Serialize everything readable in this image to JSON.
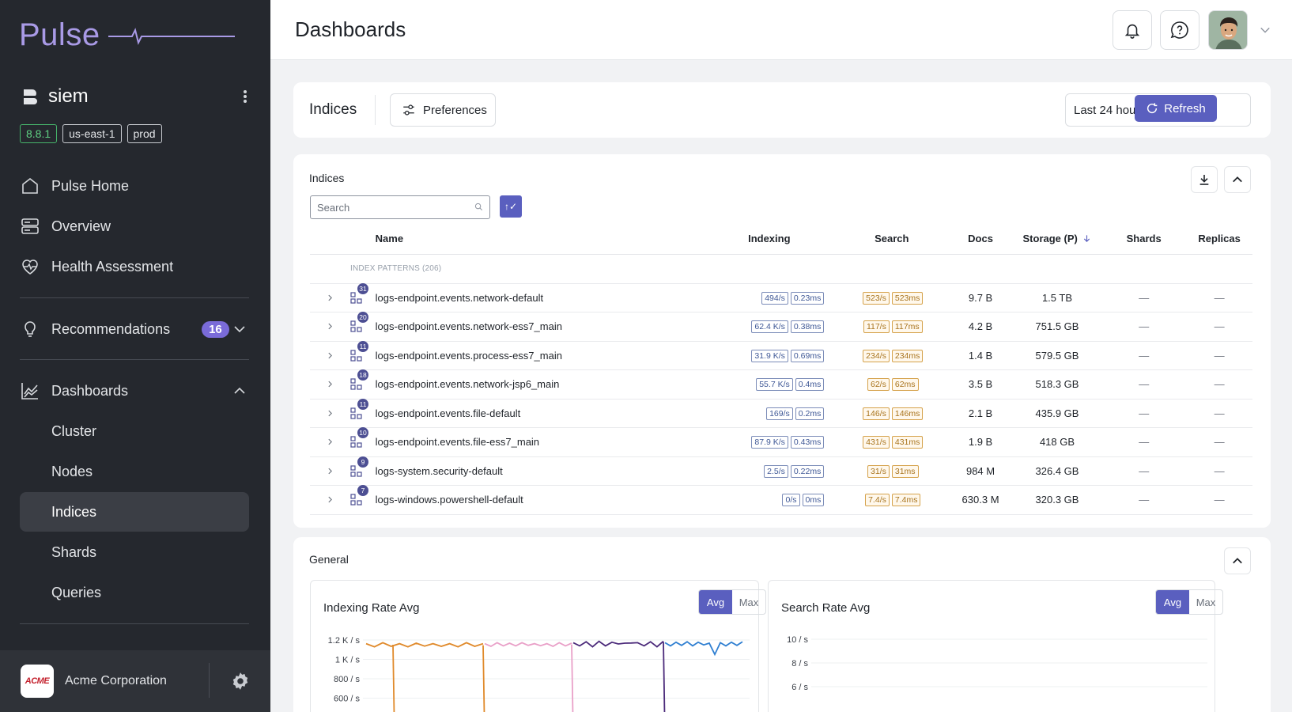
{
  "app": {
    "name": "Pulse"
  },
  "cluster": {
    "name": "siem",
    "tags": [
      "8.8.1",
      "us-east-1",
      "prod"
    ]
  },
  "nav": {
    "home": "Pulse Home",
    "overview": "Overview",
    "health": "Health Assessment",
    "recommendations": "Recommendations",
    "recommendations_count": "16",
    "dashboards": "Dashboards",
    "sub": [
      "Cluster",
      "Nodes",
      "Indices",
      "Shards",
      "Queries"
    ]
  },
  "org": {
    "name": "Acme Corporation",
    "logo_text": "ACME"
  },
  "header": {
    "title": "Dashboards"
  },
  "toolbar": {
    "title": "Indices",
    "preferences": "Preferences",
    "time_range": "Last 24 hours",
    "refresh": "Refresh"
  },
  "indices": {
    "title": "Indices",
    "search_placeholder": "Search",
    "sort_label": "↑✓",
    "columns": {
      "name": "Name",
      "indexing": "Indexing",
      "search": "Search",
      "docs": "Docs",
      "storage": "Storage (P)",
      "shards": "Shards",
      "replicas": "Replicas"
    },
    "group_label": "INDEX PATTERNS (206)",
    "rows": [
      {
        "count": "31",
        "name": "logs-endpoint.events.network-default",
        "idx_rate": "494/s",
        "idx_lat": "0.23ms",
        "s_rate": "523/s",
        "s_lat": "523ms",
        "docs": "9.7 B",
        "storage": "1.5 TB",
        "shards": "—",
        "replicas": "—"
      },
      {
        "count": "20",
        "name": "logs-endpoint.events.network-ess7_main",
        "idx_rate": "62.4 K/s",
        "idx_lat": "0.38ms",
        "s_rate": "117/s",
        "s_lat": "117ms",
        "docs": "4.2 B",
        "storage": "751.5 GB",
        "shards": "—",
        "replicas": "—"
      },
      {
        "count": "11",
        "name": "logs-endpoint.events.process-ess7_main",
        "idx_rate": "31.9 K/s",
        "idx_lat": "0.69ms",
        "s_rate": "234/s",
        "s_lat": "234ms",
        "docs": "1.4 B",
        "storage": "579.5 GB",
        "shards": "—",
        "replicas": "—"
      },
      {
        "count": "18",
        "name": "logs-endpoint.events.network-jsp6_main",
        "idx_rate": "55.7 K/s",
        "idx_lat": "0.4ms",
        "s_rate": "62/s",
        "s_lat": "62ms",
        "docs": "3.5 B",
        "storage": "518.3 GB",
        "shards": "—",
        "replicas": "—"
      },
      {
        "count": "11",
        "name": "logs-endpoint.events.file-default",
        "idx_rate": "169/s",
        "idx_lat": "0.2ms",
        "s_rate": "146/s",
        "s_lat": "146ms",
        "docs": "2.1 B",
        "storage": "435.9 GB",
        "shards": "—",
        "replicas": "—"
      },
      {
        "count": "10",
        "name": "logs-endpoint.events.file-ess7_main",
        "idx_rate": "87.9 K/s",
        "idx_lat": "0.43ms",
        "s_rate": "431/s",
        "s_lat": "431ms",
        "docs": "1.9 B",
        "storage": "418 GB",
        "shards": "—",
        "replicas": "—"
      },
      {
        "count": "9",
        "name": "logs-system.security-default",
        "idx_rate": "2.5/s",
        "idx_lat": "0.22ms",
        "s_rate": "31/s",
        "s_lat": "31ms",
        "docs": "984 M",
        "storage": "326.4 GB",
        "shards": "—",
        "replicas": "—"
      },
      {
        "count": "7",
        "name": "logs-windows.powershell-default",
        "idx_rate": "0/s",
        "idx_lat": "0ms",
        "s_rate": "7.4/s",
        "s_lat": "7.4ms",
        "docs": "630.3 M",
        "storage": "320.3 GB",
        "shards": "—",
        "replicas": "—"
      }
    ]
  },
  "general": {
    "title": "General",
    "indexing_chart": {
      "title": "Indexing Rate Avg",
      "toggle": [
        "Avg",
        "Max"
      ],
      "yticks": [
        "1.2 K / s",
        "1 K / s",
        "800 / s",
        "600 / s"
      ]
    },
    "search_chart": {
      "title": "Search Rate Avg",
      "toggle": [
        "Avg",
        "Max"
      ],
      "yticks": [
        "10 / s",
        "8 / s",
        "6 / s"
      ]
    }
  },
  "chart_data": [
    {
      "type": "line",
      "title": "Indexing Rate Avg",
      "ylim": [
        600,
        1200
      ],
      "series": [
        {
          "color": "#e08a2b",
          "values": [
            1150,
            1140,
            1160,
            1145,
            1150,
            1140,
            1155,
            1148,
            1150,
            1145
          ]
        },
        {
          "color": "#e9a0c8",
          "values": [
            1150,
            1145,
            1160,
            1150,
            1155,
            1150,
            1160,
            1155,
            1150,
            1152
          ]
        },
        {
          "color": "#4b2a7a",
          "values": [
            1160,
            1150,
            1170,
            1140,
            1175,
            1150,
            1165,
            1170,
            1155,
            1180
          ]
        },
        {
          "color": "#2f7fd1",
          "values": [
            1160,
            1150,
            1165,
            1155,
            1170,
            1150,
            1165,
            1160,
            1155,
            1060
          ]
        }
      ],
      "grid": true
    },
    {
      "type": "line",
      "title": "Search Rate Avg",
      "ylim": [
        4,
        10
      ],
      "grid": true
    }
  ]
}
